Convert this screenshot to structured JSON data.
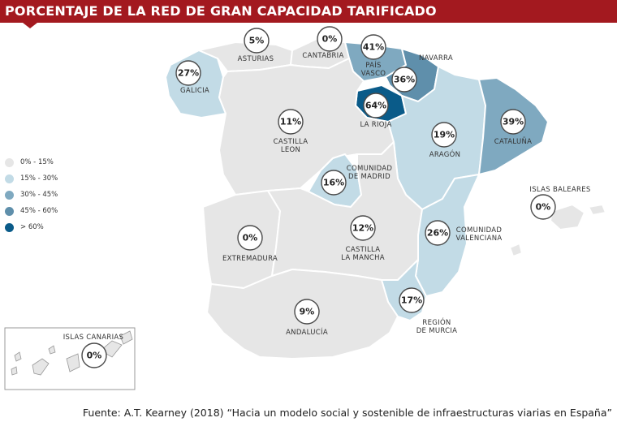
{
  "title": "PORCENTAJE DE LA RED DE GRAN CAPACIDAD TARIFICADO",
  "colors": {
    "brand": "#a3191f",
    "c0_15": "#e6e6e6",
    "c15_30": "#c2dbe6",
    "c30_45": "#7fa9c0",
    "c45_60": "#5f8fab",
    "c60": "#0a5b89"
  },
  "legend": [
    {
      "label": "0% - 15%",
      "color": "#e6e6e6"
    },
    {
      "label": "15% - 30%",
      "color": "#c2dbe6"
    },
    {
      "label": "30% - 45%",
      "color": "#7fa9c0"
    },
    {
      "label": "45% - 60%",
      "color": "#5f8fab"
    },
    {
      "label": "> 60%",
      "color": "#0a5b89"
    }
  ],
  "regions": {
    "galicia": {
      "name": "GALICIA",
      "value": "27%"
    },
    "asturias": {
      "name": "ASTURIAS",
      "value": "5%"
    },
    "cantabria": {
      "name": "CANTABRIA",
      "value": "0%"
    },
    "pais_vasco": {
      "name1": "PAÍS",
      "name2": "VASCO",
      "value": "41%"
    },
    "navarra": {
      "name": "NAVARRA",
      "value": "36%"
    },
    "la_rioja": {
      "name": "LA RIOJA",
      "value": "64%"
    },
    "castilla_leon": {
      "name1": "CASTILLA",
      "name2": "LEON",
      "value": "11%"
    },
    "aragon": {
      "name": "ARAGÓN",
      "value": "19%"
    },
    "cataluna": {
      "name": "CATALUÑA",
      "value": "39%"
    },
    "madrid": {
      "name1": "COMUNIDAD",
      "name2": "DE MADRID",
      "value": "16%"
    },
    "baleares": {
      "name": "ISLAS BALEARES",
      "value": "0%"
    },
    "extremadura": {
      "name": "EXTREMADURA",
      "value": "0%"
    },
    "castilla_mancha": {
      "name1": "CASTILLA",
      "name2": "LA MANCHA",
      "value": "12%"
    },
    "valenciana": {
      "name1": "COMUNIDAD",
      "name2": "VALENCIANA",
      "value": "26%"
    },
    "murcia": {
      "name1": "REGIÓN",
      "name2": "DE MURCIA",
      "value": "17%"
    },
    "andalucia": {
      "name": "ANDALUCÍA",
      "value": "9%"
    },
    "canarias": {
      "name": "ISLAS CANARIAS",
      "value": "0%"
    }
  },
  "source": "Fuente: A.T. Kearney (2018) “Hacia un modelo social y sostenible de infraestructuras viarias en España”"
}
